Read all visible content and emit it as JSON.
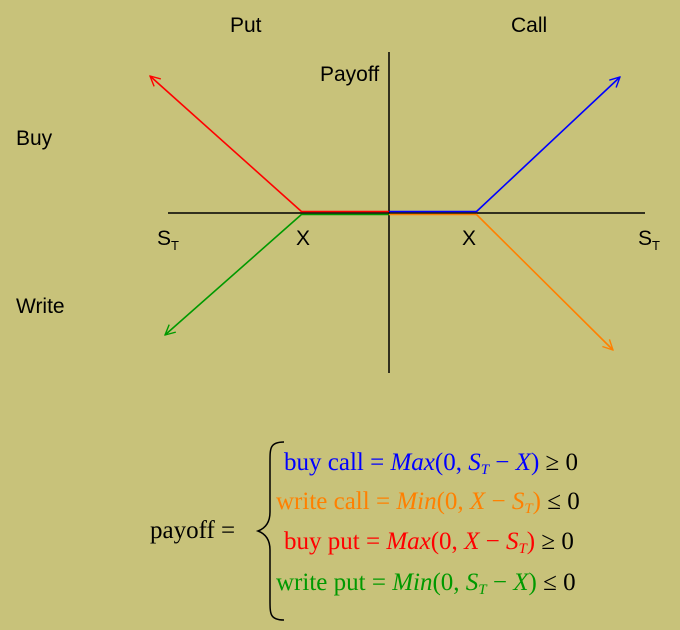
{
  "diagram": {
    "col_put": "Put",
    "col_call": "Call",
    "row_buy": "Buy",
    "row_write": "Write",
    "y_axis_label": "Payoff",
    "x_axis_label": "S",
    "x_axis_sub": "T",
    "strike_label": "X"
  },
  "colors": {
    "background": "#c8c27a",
    "buy_call": "#0000ff",
    "write_call": "#ff8000",
    "buy_put": "#ff0000",
    "write_put": "#009900",
    "axis": "#000000"
  },
  "formula": {
    "lhs": "payoff =",
    "rows": [
      {
        "name": "buy call",
        "func": "Max",
        "inner": "0, S_T − X",
        "rel": "≥ 0",
        "color": "#0000ff"
      },
      {
        "name": "write call",
        "func": "Min",
        "inner": "0, X − S_T",
        "rel": "≤ 0",
        "color": "#ff8000"
      },
      {
        "name": "buy put",
        "func": "Max",
        "inner": "0, X − S_T",
        "rel": "≥ 0",
        "color": "#ff0000"
      },
      {
        "name": "write put",
        "func": "Min",
        "inner": "0, S_T − X",
        "rel": "≤ 0",
        "color": "#009900"
      }
    ]
  }
}
